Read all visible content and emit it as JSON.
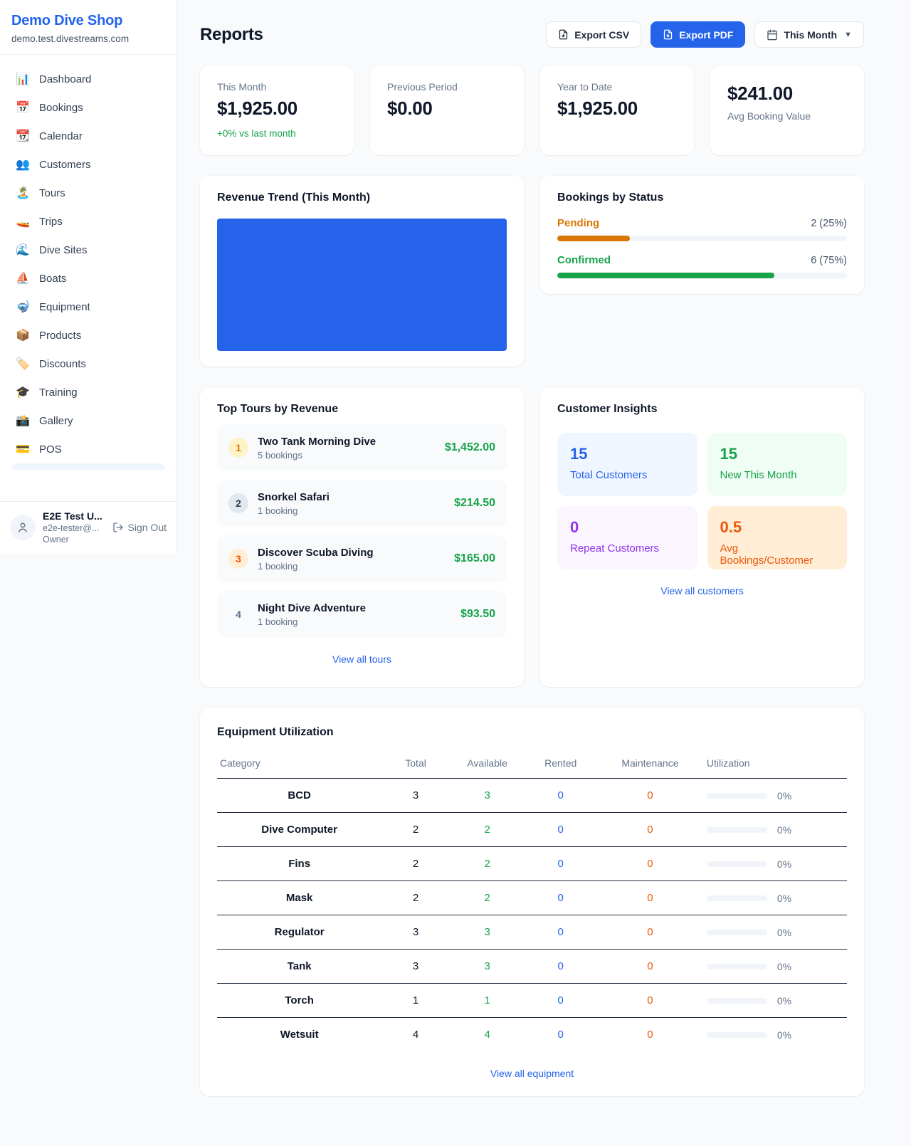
{
  "colors": {
    "accent": "#2563eb",
    "green": "#16a34a",
    "pending_orange": "#d97706",
    "deep_orange": "#ea580c",
    "purple": "#9333ea"
  },
  "sidebar": {
    "title": "Demo Dive Shop",
    "subtitle": "demo.test.divestreams.com",
    "items": [
      {
        "icon": "📊",
        "label": "Dashboard"
      },
      {
        "icon": "📅",
        "label": "Bookings"
      },
      {
        "icon": "📆",
        "label": "Calendar"
      },
      {
        "icon": "👥",
        "label": "Customers"
      },
      {
        "icon": "🏝️",
        "label": "Tours"
      },
      {
        "icon": "🚤",
        "label": "Trips"
      },
      {
        "icon": "🌊",
        "label": "Dive Sites"
      },
      {
        "icon": "⛵",
        "label": "Boats"
      },
      {
        "icon": "🤿",
        "label": "Equipment"
      },
      {
        "icon": "📦",
        "label": "Products"
      },
      {
        "icon": "🏷️",
        "label": "Discounts"
      },
      {
        "icon": "🎓",
        "label": "Training"
      },
      {
        "icon": "📸",
        "label": "Gallery"
      },
      {
        "icon": "💳",
        "label": "POS"
      }
    ],
    "user": {
      "name": "E2E Test U...",
      "email": "e2e-tester@...",
      "role": "Owner",
      "signout_label": "Sign Out"
    }
  },
  "header": {
    "title": "Reports",
    "export_csv_label": "Export CSV",
    "export_pdf_label": "Export PDF",
    "period_label": "This Month"
  },
  "stats": [
    {
      "label": "This Month",
      "value": "$1,925.00",
      "delta": "+0% vs last month"
    },
    {
      "label": "Previous Period",
      "value": "$0.00"
    },
    {
      "label": "Year to Date",
      "value": "$1,925.00"
    },
    {
      "value": "$241.00",
      "label": "Avg Booking Value"
    }
  ],
  "revenue_trend": {
    "title": "Revenue Trend (This Month)"
  },
  "bookings_by_status": {
    "title": "Bookings by Status",
    "rows": [
      {
        "label": "Pending",
        "value": "2 (25%)",
        "pct": "25%"
      },
      {
        "label": "Confirmed",
        "value": "6 (75%)",
        "pct": "75%"
      }
    ]
  },
  "top_tours": {
    "title": "Top Tours by Revenue",
    "items": [
      {
        "rank": "1",
        "name": "Two Tank Morning Dive",
        "bookings": "5 bookings",
        "amount": "$1,452.00"
      },
      {
        "rank": "2",
        "name": "Snorkel Safari",
        "bookings": "1 booking",
        "amount": "$214.50"
      },
      {
        "rank": "3",
        "name": "Discover Scuba Diving",
        "bookings": "1 booking",
        "amount": "$165.00"
      },
      {
        "rank": "4",
        "name": "Night Dive Adventure",
        "bookings": "1 booking",
        "amount": "$93.50"
      }
    ],
    "link": "View all tours"
  },
  "customer_insights": {
    "title": "Customer Insights",
    "tiles": [
      {
        "value": "15",
        "label": "Total Customers"
      },
      {
        "value": "15",
        "label": "New This Month"
      },
      {
        "value": "0",
        "label": "Repeat Customers"
      },
      {
        "value": "0.5",
        "label": "Avg Bookings/Customer"
      }
    ],
    "link": "View all customers"
  },
  "equipment": {
    "title": "Equipment Utilization",
    "columns": [
      "Category",
      "Total",
      "Available",
      "Rented",
      "Maintenance",
      "Utilization"
    ],
    "rows": [
      {
        "category": "BCD",
        "total": "3",
        "available": "3",
        "rented": "0",
        "maintenance": "0",
        "utilization": "0%"
      },
      {
        "category": "Dive Computer",
        "total": "2",
        "available": "2",
        "rented": "0",
        "maintenance": "0",
        "utilization": "0%"
      },
      {
        "category": "Fins",
        "total": "2",
        "available": "2",
        "rented": "0",
        "maintenance": "0",
        "utilization": "0%"
      },
      {
        "category": "Mask",
        "total": "2",
        "available": "2",
        "rented": "0",
        "maintenance": "0",
        "utilization": "0%"
      },
      {
        "category": "Regulator",
        "total": "3",
        "available": "3",
        "rented": "0",
        "maintenance": "0",
        "utilization": "0%"
      },
      {
        "category": "Tank",
        "total": "3",
        "available": "3",
        "rented": "0",
        "maintenance": "0",
        "utilization": "0%"
      },
      {
        "category": "Torch",
        "total": "1",
        "available": "1",
        "rented": "0",
        "maintenance": "0",
        "utilization": "0%"
      },
      {
        "category": "Wetsuit",
        "total": "4",
        "available": "4",
        "rented": "0",
        "maintenance": "0",
        "utilization": "0%"
      }
    ],
    "link": "View all equipment"
  }
}
